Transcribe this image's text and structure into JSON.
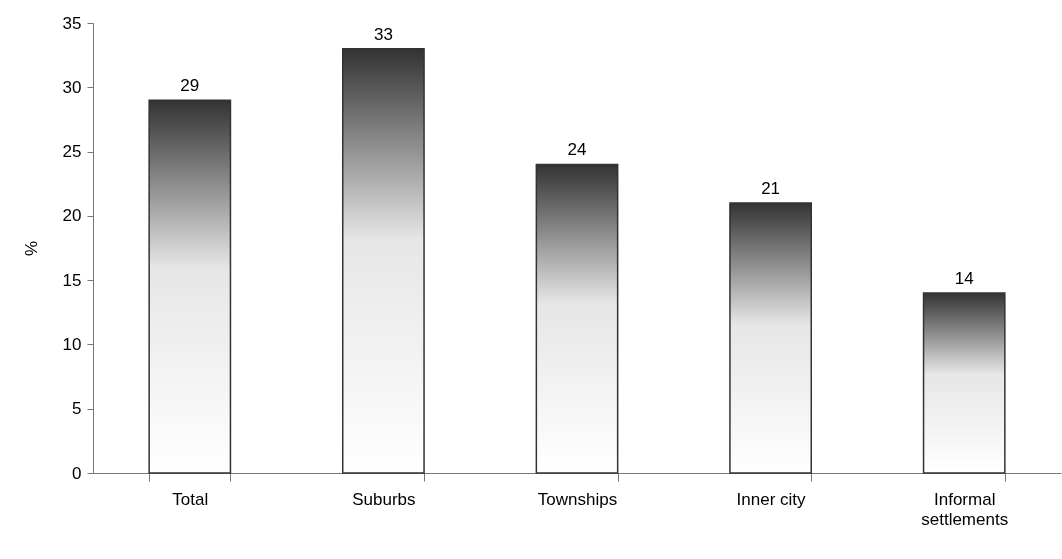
{
  "chart_data": {
    "type": "bar",
    "ylabel": "%",
    "categories": [
      "Total",
      "Suburbs",
      "Townships",
      "Inner city",
      "Informal settlements"
    ],
    "values": [
      29,
      33,
      24,
      21,
      14
    ],
    "color": "#333333",
    "ylim": [
      0,
      35
    ],
    "yticks": [
      0,
      5,
      10,
      15,
      20,
      25,
      30,
      35
    ],
    "grid": false,
    "data_labels": true
  }
}
